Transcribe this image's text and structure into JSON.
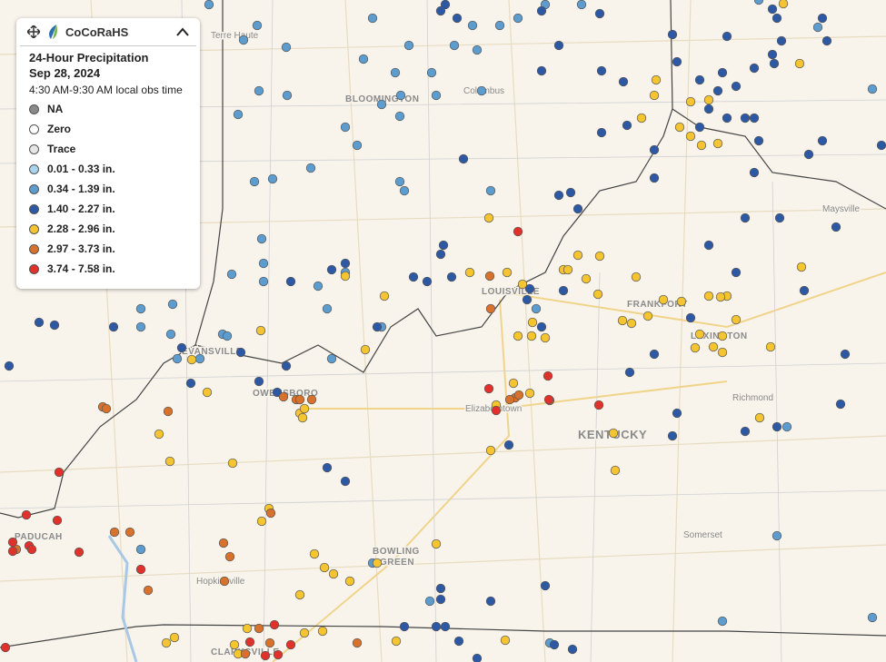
{
  "legend": {
    "brand": "CoCoRaHS",
    "title": "24-Hour Precipitation",
    "date": "Sep 28, 2024",
    "time": "4:30 AM-9:30 AM local obs time",
    "items": [
      {
        "label": "NA",
        "color": "#8a8a8a"
      },
      {
        "label": "Zero",
        "color": "#ffffff"
      },
      {
        "label": "Trace",
        "color": "#e6e6e6"
      },
      {
        "label": "0.01 - 0.33 in.",
        "color": "#a9d3ee"
      },
      {
        "label": "0.34 - 1.39 in.",
        "color": "#5c9ccf"
      },
      {
        "label": "1.40 - 2.27 in.",
        "color": "#2d58a3"
      },
      {
        "label": "2.28 - 2.96 in.",
        "color": "#f5c431"
      },
      {
        "label": "2.97 - 3.73 in.",
        "color": "#d8712b"
      },
      {
        "label": "3.74 - 7.58 in.",
        "color": "#e0322b"
      }
    ]
  },
  "places": [
    "Terre Haute",
    "BLOOMINGTON",
    "Columbus",
    "LOUISVILLE",
    "FRANKFORT",
    "LEXINGTON",
    "Maysville",
    "EVANSVILLE",
    "OWENSBORO",
    "Elizabethtown",
    "Richmond",
    "KENTUCKY",
    "Somerset",
    "BOWLING",
    "GREEN",
    "Hopkinsville",
    "PADUCAH",
    "CLARKSVILLE"
  ]
}
